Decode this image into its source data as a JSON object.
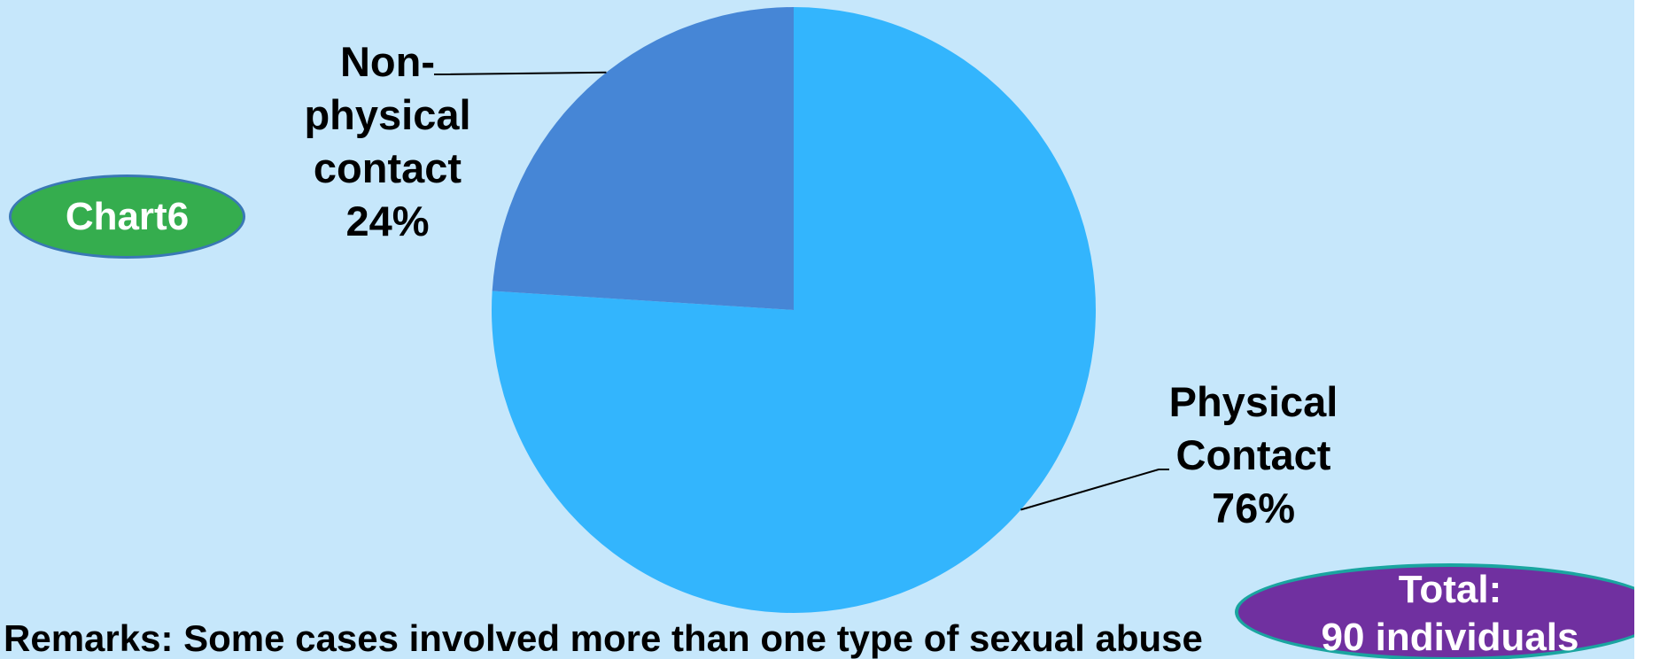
{
  "badge": {
    "label": "Chart6"
  },
  "total": {
    "line1": "Total:",
    "line2": "90 individuals"
  },
  "remarks": "Remarks: Some cases involved more than one type of sexual abuse",
  "colors": {
    "background": "#c6e7fb",
    "physical": "#33b5fd",
    "nonphysical": "#4686d6",
    "badge_green": "#35ad4e",
    "badge_purple": "#7030a0"
  },
  "chart_data": {
    "type": "pie",
    "title": "",
    "slices": [
      {
        "name": "Physical Contact",
        "name_lines": [
          "Physical",
          "Contact"
        ],
        "value": 76,
        "label": "76%",
        "color": "#33b5fd"
      },
      {
        "name": "Non-physical contact",
        "name_lines": [
          "Non-",
          "physical",
          "contact"
        ],
        "value": 24,
        "label": "24%",
        "color": "#4686d6"
      }
    ],
    "legend": "none"
  }
}
